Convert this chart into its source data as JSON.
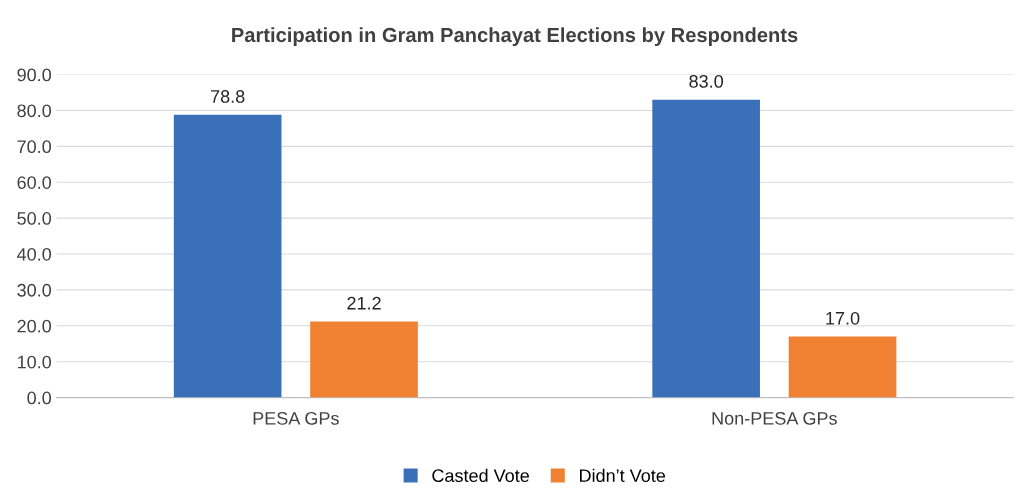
{
  "chart_data": {
    "type": "bar",
    "title": "Participation in Gram Panchayat Elections by Respondents",
    "categories": [
      "PESA GPs",
      "Non-PESA GPs"
    ],
    "series": [
      {
        "name": "Casted Vote",
        "color": "#3a70b7",
        "values": [
          78.8,
          83.0
        ],
        "value_labels": [
          "78.8",
          "83.0"
        ]
      },
      {
        "name": "Didn’t Vote",
        "color": "#f08132",
        "values": [
          21.2,
          17.0
        ],
        "value_labels": [
          "21.2",
          "17.0"
        ]
      }
    ],
    "ylim": [
      0,
      90
    ],
    "yticks": [
      {
        "value": 0,
        "label": "0.0"
      },
      {
        "value": 10,
        "label": "10.0"
      },
      {
        "value": 20,
        "label": "20.0"
      },
      {
        "value": 30,
        "label": "30.0"
      },
      {
        "value": 40,
        "label": "40.0"
      },
      {
        "value": 50,
        "label": "50.0"
      },
      {
        "value": 60,
        "label": "60.0"
      },
      {
        "value": 70,
        "label": "70.0"
      },
      {
        "value": 80,
        "label": "80.0"
      },
      {
        "value": 90,
        "label": "90.0"
      }
    ],
    "grid": "y",
    "legend": "bottom"
  }
}
